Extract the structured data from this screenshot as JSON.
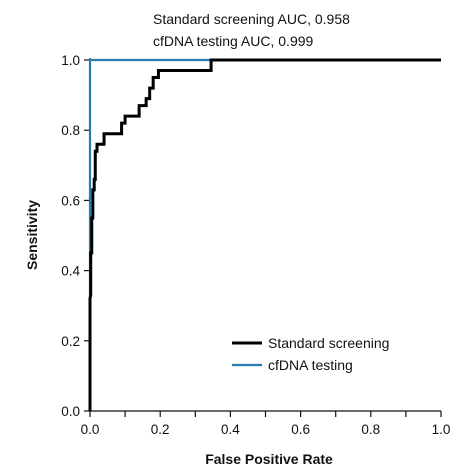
{
  "chart_data": {
    "type": "line",
    "annotations": [
      "Standard screening AUC, 0.958",
      "cfDNA testing AUC, 0.999"
    ],
    "xlabel": "False Positive Rate",
    "ylabel": "Sensitivity",
    "xlim": [
      0,
      1
    ],
    "ylim": [
      0,
      1
    ],
    "xticks": [
      "0.0",
      "0.2",
      "0.4",
      "0.6",
      "0.8",
      "1.0"
    ],
    "yticks": [
      "0.0",
      "0.2",
      "0.4",
      "0.6",
      "0.8",
      "1.0"
    ],
    "x_minor_step": 0.1,
    "grid": false,
    "legend_position": "bottom-right",
    "series": [
      {
        "name": "Standard screening",
        "color": "#000000",
        "points": [
          [
            0.0,
            0.0
          ],
          [
            0.0,
            0.32
          ],
          [
            0.002,
            0.33
          ],
          [
            0.002,
            0.45
          ],
          [
            0.005,
            0.45
          ],
          [
            0.005,
            0.55
          ],
          [
            0.008,
            0.55
          ],
          [
            0.008,
            0.63
          ],
          [
            0.012,
            0.63
          ],
          [
            0.012,
            0.66
          ],
          [
            0.015,
            0.66
          ],
          [
            0.015,
            0.74
          ],
          [
            0.02,
            0.74
          ],
          [
            0.02,
            0.76
          ],
          [
            0.04,
            0.76
          ],
          [
            0.04,
            0.79
          ],
          [
            0.09,
            0.79
          ],
          [
            0.09,
            0.82
          ],
          [
            0.1,
            0.82
          ],
          [
            0.1,
            0.84
          ],
          [
            0.14,
            0.84
          ],
          [
            0.14,
            0.87
          ],
          [
            0.16,
            0.87
          ],
          [
            0.16,
            0.89
          ],
          [
            0.17,
            0.89
          ],
          [
            0.17,
            0.92
          ],
          [
            0.18,
            0.92
          ],
          [
            0.18,
            0.95
          ],
          [
            0.195,
            0.95
          ],
          [
            0.195,
            0.97
          ],
          [
            0.345,
            0.97
          ],
          [
            0.345,
            1.0
          ],
          [
            1.0,
            1.0
          ]
        ]
      },
      {
        "name": "cfDNA testing",
        "color": "#2a7ab0",
        "points": [
          [
            0.0,
            0.0
          ],
          [
            0.0,
            1.0
          ],
          [
            1.0,
            1.0
          ]
        ]
      }
    ]
  }
}
